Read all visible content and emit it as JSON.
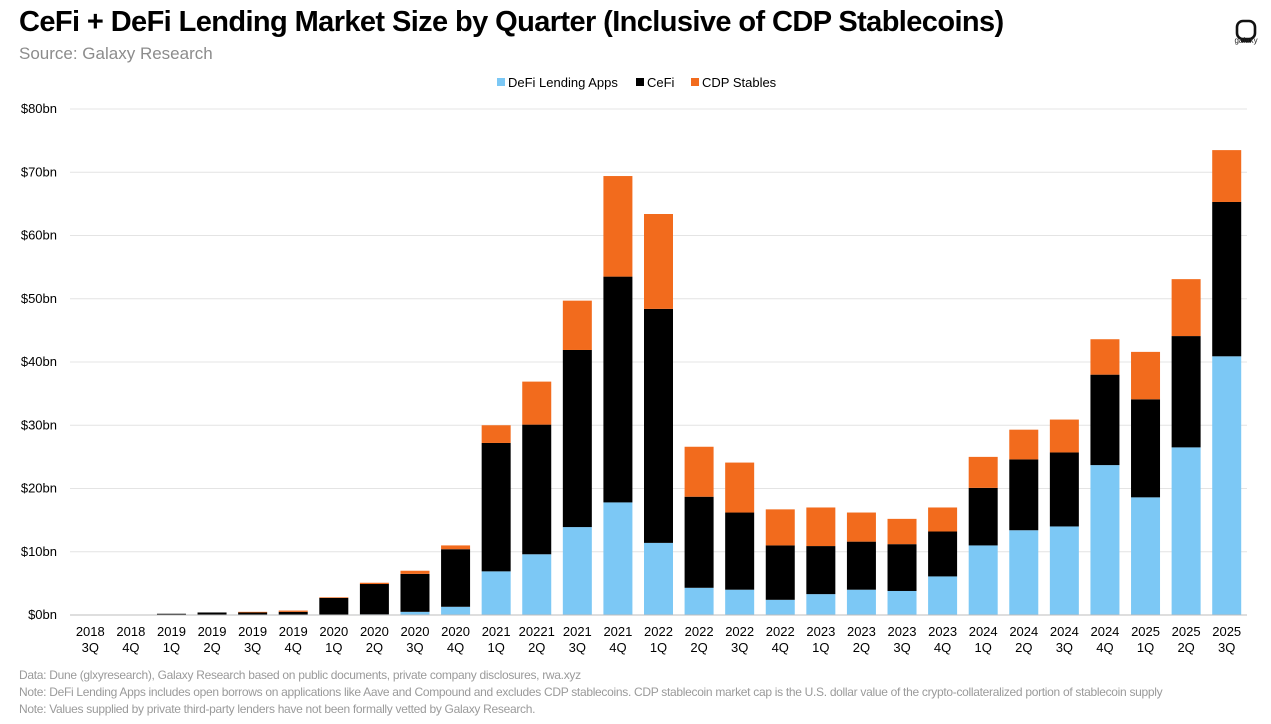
{
  "header": {
    "title": "CeFi + DeFi Lending Market Size by Quarter (Inclusive of CDP Stablecoins)",
    "subtitle": "Source: Galaxy Research",
    "logo_text": "galaxy"
  },
  "footer": {
    "notes": [
      "Data: Dune (glxyresearch), Galaxy Research based on public documents, private company disclosures, rwa.xyz",
      "Note: DeFi Lending Apps includes open borrows on applications like Aave and Compound and excludes CDP stablecoins. CDP stablecoin market cap is the U.S. dollar value of the crypto-collateralized portion of stablecoin supply",
      "Note: Values supplied by private third-party lenders have not been formally vetted  by Galaxy Research."
    ]
  },
  "colors": {
    "defi": "#7cc8f5",
    "cefi": "#000000",
    "cdp": "#f26b1d",
    "grid": "#e4e4e4"
  },
  "chart_data": {
    "type": "bar",
    "stacked": true,
    "legend_position": "top",
    "grid": true,
    "ylim": [
      0,
      80
    ],
    "yticks": [
      "$0bn",
      "$10bn",
      "$20bn",
      "$30bn",
      "$40bn",
      "$50bn",
      "$60bn",
      "$70bn",
      "$80bn"
    ],
    "categories": [
      [
        "2018",
        "3Q"
      ],
      [
        "2018",
        "4Q"
      ],
      [
        "2019",
        "1Q"
      ],
      [
        "2019",
        "2Q"
      ],
      [
        "2019",
        "3Q"
      ],
      [
        "2019",
        "4Q"
      ],
      [
        "2020",
        "1Q"
      ],
      [
        "2020",
        "2Q"
      ],
      [
        "2020",
        "3Q"
      ],
      [
        "2020",
        "4Q"
      ],
      [
        "2021",
        "1Q"
      ],
      [
        "20221",
        "2Q"
      ],
      [
        "2021",
        "3Q"
      ],
      [
        "2021",
        "4Q"
      ],
      [
        "2022",
        "1Q"
      ],
      [
        "2022",
        "2Q"
      ],
      [
        "2022",
        "3Q"
      ],
      [
        "2022",
        "4Q"
      ],
      [
        "2023",
        "1Q"
      ],
      [
        "2023",
        "2Q"
      ],
      [
        "2023",
        "3Q"
      ],
      [
        "2023",
        "4Q"
      ],
      [
        "2024",
        "1Q"
      ],
      [
        "2024",
        "2Q"
      ],
      [
        "2024",
        "3Q"
      ],
      [
        "2024",
        "4Q"
      ],
      [
        "2025",
        "1Q"
      ],
      [
        "2025",
        "2Q"
      ],
      [
        "2025",
        "3Q"
      ]
    ],
    "series": [
      {
        "name": "DeFi Lending Apps",
        "color": "#7cc8f5",
        "values": [
          0,
          0,
          0,
          0,
          0,
          0,
          0,
          0.1,
          0.5,
          1.3,
          6.9,
          9.6,
          13.9,
          17.8,
          11.4,
          4.3,
          4.0,
          2.4,
          3.3,
          4.0,
          3.8,
          6.1,
          11.0,
          13.4,
          14.0,
          23.7,
          18.6,
          26.5,
          40.9
        ]
      },
      {
        "name": "CeFi",
        "color": "#000000",
        "values": [
          0,
          0,
          0.2,
          0.4,
          0.4,
          0.5,
          2.7,
          4.8,
          6.0,
          9.1,
          20.3,
          20.5,
          28.0,
          35.7,
          37.0,
          14.4,
          12.2,
          8.6,
          7.6,
          7.6,
          7.4,
          7.1,
          9.1,
          11.2,
          11.7,
          14.3,
          15.5,
          17.6,
          24.4
        ]
      },
      {
        "name": "CDP Stables",
        "color": "#f26b1d",
        "values": [
          0,
          0,
          0,
          0,
          0.1,
          0.2,
          0.1,
          0.2,
          0.5,
          0.6,
          2.8,
          6.8,
          7.8,
          15.9,
          15.0,
          7.9,
          7.9,
          5.7,
          6.1,
          4.6,
          4.0,
          3.8,
          4.9,
          4.7,
          5.2,
          5.6,
          7.5,
          9.0,
          8.2
        ]
      }
    ]
  }
}
